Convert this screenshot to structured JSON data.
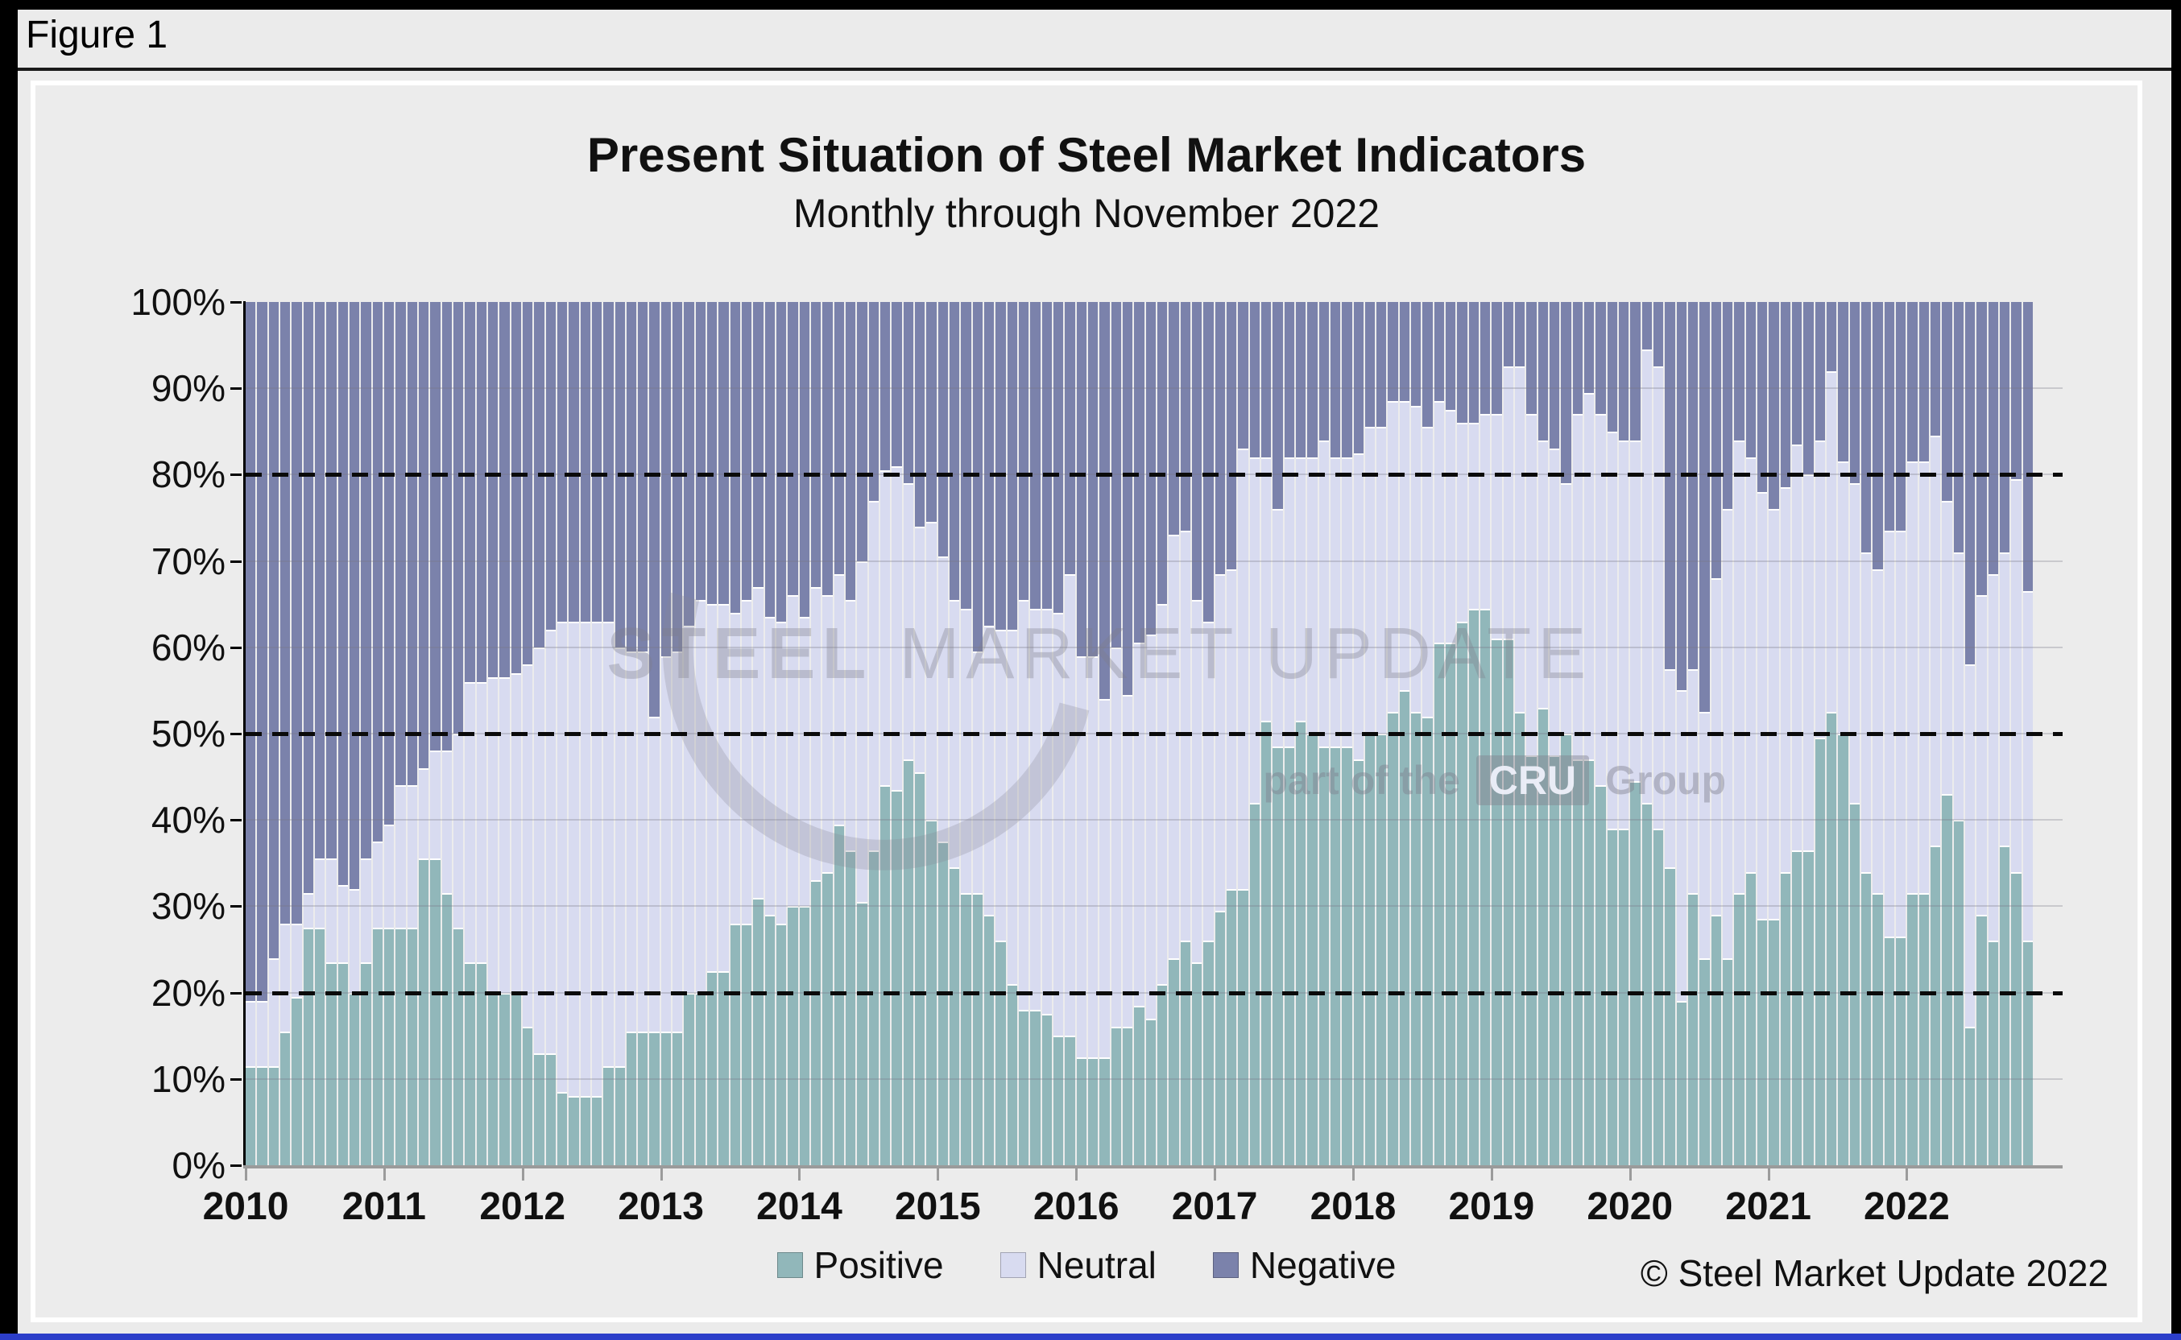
{
  "figure_label": "Figure 1",
  "header": {
    "title": "Present Situation of Steel Market Indicators",
    "subtitle": "Monthly through November 2022"
  },
  "copyright": "© Steel Market Update 2022",
  "watermark": {
    "main_bold": "STEEL",
    "main_rest": " MARKET UPDATE",
    "sub_prefix": "part of the",
    "sub_box": "CRU",
    "sub_suffix": "Group"
  },
  "legend": {
    "items": [
      {
        "label": "Positive",
        "color": "#91b7ba"
      },
      {
        "label": "Neutral",
        "color": "#d8dbf0"
      },
      {
        "label": "Negative",
        "color": "#7b82ab"
      }
    ]
  },
  "colors": {
    "page_background": "#ebebeb",
    "panel_background": "#ececec",
    "positive": "#91b7ba",
    "neutral": "#d8dbf0",
    "negative": "#7b82ab",
    "axis": "#000000",
    "x_axis": "#9b9b9b",
    "dashed_line": "#0a0a0a",
    "watermark": "#7d7d8a",
    "bottom_strip": "#2c3ec9"
  },
  "axes": {
    "y_tick_labels": [
      "100%",
      "90%",
      "80%",
      "70%",
      "60%",
      "50%",
      "40%",
      "30%",
      "20%",
      "10%",
      "0%"
    ],
    "x_tick_labels": [
      "2010",
      "2011",
      "2012",
      "2013",
      "2014",
      "2015",
      "2016",
      "2017",
      "2018",
      "2019",
      "2020",
      "2021",
      "2022"
    ],
    "dashed_levels": [
      20,
      50,
      80
    ]
  },
  "chart_data": {
    "type": "bar",
    "stacked": true,
    "percent_stack": true,
    "title": "Present Situation of Steel Market Indicators",
    "subtitle": "Monthly through November 2022",
    "x_start": "2010-01",
    "x_end": "2022-11",
    "frequency": "monthly",
    "n_points": 155,
    "ylim": [
      0,
      100
    ],
    "unit": "%",
    "grid": "horizontal 10% lines, dashed reference lines at 20/50/80",
    "legend_position": "bottom-center",
    "series": [
      {
        "name": "Positive",
        "color": "#91b7ba",
        "values": [
          11.5,
          11.5,
          11.5,
          15.5,
          19.5,
          27.5,
          27.5,
          23.5,
          23.5,
          20,
          23.5,
          27.5,
          27.5,
          27.5,
          27.5,
          35.5,
          35.5,
          31.5,
          27.5,
          23.5,
          23.5,
          20,
          20,
          20,
          16,
          13,
          13,
          8.5,
          8,
          8,
          8,
          11.5,
          11.5,
          15.5,
          15.5,
          15.5,
          15.5,
          15.5,
          20,
          20,
          22.5,
          22.5,
          28,
          28,
          31,
          29,
          28,
          30,
          30,
          33,
          34,
          39.5,
          36.5,
          30.5,
          36.5,
          44,
          43.5,
          47,
          45.5,
          40,
          37.5,
          34.5,
          31.5,
          31.5,
          29,
          26,
          21,
          18,
          18,
          17.5,
          15,
          15,
          12.5,
          12.5,
          12.5,
          16,
          16,
          18.5,
          17,
          21,
          24,
          26,
          23.5,
          26,
          29.5,
          32,
          32,
          42,
          51.5,
          48.5,
          48.5,
          51.5,
          50,
          48.5,
          48.5,
          48.5,
          47,
          50,
          50,
          52.5,
          55,
          52.5,
          52,
          60.5,
          60.5,
          63,
          64.5,
          64.5,
          61,
          61,
          52.5,
          47.5,
          53,
          47.5,
          50,
          47,
          47,
          44,
          39,
          39,
          44.5,
          42,
          39,
          34.5,
          19,
          31.5,
          24,
          29,
          24,
          31.5,
          34,
          28.5,
          28.5,
          34,
          36.5,
          36.5,
          49.5,
          52.5,
          50,
          42,
          34,
          31.5,
          26.5,
          26.5,
          31.5,
          31.5,
          37,
          43,
          40,
          16,
          29,
          26,
          37,
          34,
          26
        ]
      },
      {
        "name": "Neutral",
        "color": "#d8dbf0",
        "values": [
          7.5,
          7.5,
          12.5,
          12.5,
          8.5,
          4,
          8,
          12,
          9,
          12,
          12,
          10,
          12,
          16.5,
          16.5,
          10.5,
          12.5,
          16.5,
          22.5,
          32.5,
          32.5,
          36.5,
          36.5,
          37,
          42,
          47,
          49,
          54.5,
          55,
          55,
          55,
          51.5,
          48.5,
          44,
          44,
          36.5,
          43.5,
          44,
          42.5,
          45.5,
          42.5,
          42.5,
          36,
          37.5,
          36,
          34.5,
          35,
          36,
          33.5,
          34,
          32,
          29,
          29,
          39.5,
          40.5,
          36.5,
          37.5,
          32,
          28.5,
          34.5,
          33,
          31,
          33,
          28,
          33.5,
          36,
          41,
          47.5,
          46.5,
          47,
          49,
          53.5,
          46.5,
          46.5,
          41.5,
          44,
          38.5,
          42,
          44.5,
          44,
          49,
          47.5,
          42,
          37,
          39,
          37,
          51,
          40,
          30.5,
          27.5,
          33.5,
          30.5,
          32,
          35.5,
          33.5,
          33.5,
          35.5,
          35.5,
          35.5,
          36,
          33.5,
          35.5,
          33.5,
          28,
          27,
          23,
          21.5,
          22.5,
          26,
          31.5,
          40,
          39.5,
          31,
          35.5,
          29,
          40,
          42.5,
          43,
          46,
          45,
          39.5,
          52.5,
          53.5,
          23,
          36,
          26,
          28.5,
          39,
          52,
          52.5,
          48,
          49.5,
          47.5,
          44.5,
          47,
          43.5,
          34.5,
          39.5,
          31.5,
          37,
          37,
          37.5,
          47,
          47,
          50,
          50,
          47.5,
          34,
          31,
          42,
          37,
          42.5,
          34,
          45.5,
          40.5
        ]
      },
      {
        "name": "Negative",
        "color": "#7b82ab",
        "values": [
          81,
          81,
          76,
          72,
          72,
          68.5,
          64.5,
          64.5,
          67.5,
          68,
          64.5,
          62.5,
          60.5,
          56,
          56,
          54,
          52,
          52,
          50,
          44,
          44,
          43.5,
          43.5,
          43,
          42,
          40,
          38,
          37,
          37,
          37,
          37,
          37,
          40,
          40.5,
          40.5,
          48,
          41,
          40.5,
          37.5,
          34.5,
          35,
          35,
          36,
          34.5,
          33,
          36.5,
          37,
          34,
          36.5,
          33,
          34,
          31.5,
          34.5,
          30,
          23,
          19.5,
          19,
          21,
          26,
          25.5,
          29.5,
          34.5,
          35.5,
          40.5,
          37.5,
          38,
          38,
          34.5,
          35.5,
          35.5,
          36,
          31.5,
          41,
          41,
          46,
          40,
          45.5,
          39.5,
          38.5,
          35,
          27,
          26.5,
          34.5,
          37,
          31.5,
          31,
          17,
          18,
          18,
          24,
          18,
          18,
          18,
          16,
          18,
          18,
          17.5,
          14.5,
          14.5,
          11.5,
          11.5,
          12,
          14.5,
          11.5,
          12.5,
          14,
          14,
          13,
          13,
          7.5,
          7.5,
          13,
          16,
          17,
          21,
          13,
          10.5,
          13,
          15,
          16,
          16,
          5.5,
          7.5,
          42.5,
          45,
          42.5,
          47.5,
          32,
          24,
          16,
          18,
          22,
          24,
          21.5,
          16.5,
          20,
          16,
          8,
          18.5,
          21,
          29,
          31,
          26.5,
          26.5,
          18.5,
          18.5,
          15.5,
          23,
          29,
          42,
          34,
          31.5,
          29,
          20.5,
          33.5
        ]
      }
    ]
  }
}
